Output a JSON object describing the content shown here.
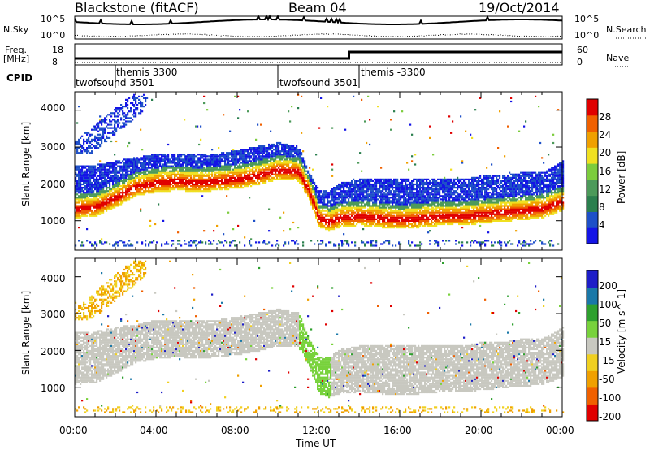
{
  "header": {
    "station": "Blackstone (fitACF)",
    "beam": "Beam 04",
    "date": "19/Oct/2014"
  },
  "noise_panel": {
    "left_label": "N.Sky",
    "right_label": "N.Search",
    "left_ticks": [
      "10^5",
      "10^0"
    ],
    "right_ticks": [
      "10^5",
      "10^0"
    ]
  },
  "freq_panel": {
    "left_label_line1": "Freq.",
    "left_label_line2": "[MHz]",
    "right_label": "Nave",
    "left_ticks": [
      "18",
      "8"
    ],
    "right_ticks": [
      "60",
      "0"
    ]
  },
  "cpid": {
    "label": "CPID",
    "segments": [
      {
        "label": "twofsound 3501",
        "start_hour": 0.0
      },
      {
        "label": "themis 3300",
        "start_hour": 2.0
      },
      {
        "label": "twofsound 3501",
        "start_hour": 10.0
      },
      {
        "label": "themis -3300",
        "start_hour": 14.0
      }
    ]
  },
  "colors": {
    "power_scale": [
      "#1414e6",
      "#1e50c8",
      "#2b7f4e",
      "#4c9a5a",
      "#7ccc3c",
      "#f0e020",
      "#f0a000",
      "#f06000",
      "#e00000"
    ],
    "velocity_scale": [
      "#1e1ec8",
      "#1a78a8",
      "#2ea02e",
      "#78d23c",
      "#c8c8c0",
      "#f0d020",
      "#f0a000",
      "#f06000",
      "#e00000"
    ]
  },
  "chart_data": [
    {
      "type": "heatmap",
      "title": "Power",
      "ylabel": "Slant Range [km]",
      "xlabel": "Time UT",
      "x_ticks": [
        "00:00",
        "04:00",
        "08:00",
        "12:00",
        "16:00",
        "20:00",
        "00:00"
      ],
      "y_ticks": [
        1000,
        2000,
        3000,
        4000
      ],
      "xlim_hours": [
        0,
        24
      ],
      "ylim_km": [
        200,
        4500
      ],
      "colorbar_label": "Power [dB]",
      "colorbar_ticks": [
        4,
        8,
        12,
        16,
        20,
        24,
        28
      ],
      "scatter_band": {
        "x_hours": [
          0,
          1,
          2,
          3,
          4,
          5,
          6,
          7,
          8,
          9,
          10,
          11,
          11.5,
          12,
          12.5,
          13,
          14,
          15,
          16,
          17,
          18,
          19,
          20,
          21,
          22,
          23,
          24
        ],
        "peak_km": [
          1300,
          1350,
          1600,
          1900,
          2000,
          2050,
          2000,
          2050,
          2100,
          2200,
          2350,
          2300,
          1800,
          1050,
          950,
          1050,
          1100,
          1050,
          1000,
          1050,
          1100,
          1100,
          1150,
          1200,
          1250,
          1300,
          1500
        ],
        "top_km": [
          2500,
          2500,
          2600,
          2700,
          2800,
          2800,
          2800,
          2800,
          2900,
          3000,
          3100,
          3000,
          2300,
          1800,
          1800,
          2000,
          2100,
          2100,
          2100,
          2100,
          2100,
          2100,
          2200,
          2200,
          2300,
          2300,
          2600
        ]
      }
    },
    {
      "type": "heatmap",
      "title": "Velocity",
      "ylabel": "Slant Range [km]",
      "xlabel": "Time UT",
      "x_ticks": [
        "00:00",
        "04:00",
        "08:00",
        "12:00",
        "16:00",
        "20:00",
        "00:00"
      ],
      "y_ticks": [
        1000,
        2000,
        3000,
        4000
      ],
      "xlim_hours": [
        0,
        24
      ],
      "ylim_km": [
        200,
        4500
      ],
      "colorbar_label": "Velocity [m s^-1]",
      "colorbar_ticks": [
        200,
        100,
        50,
        15,
        -15,
        -50,
        -100,
        -200
      ]
    }
  ]
}
